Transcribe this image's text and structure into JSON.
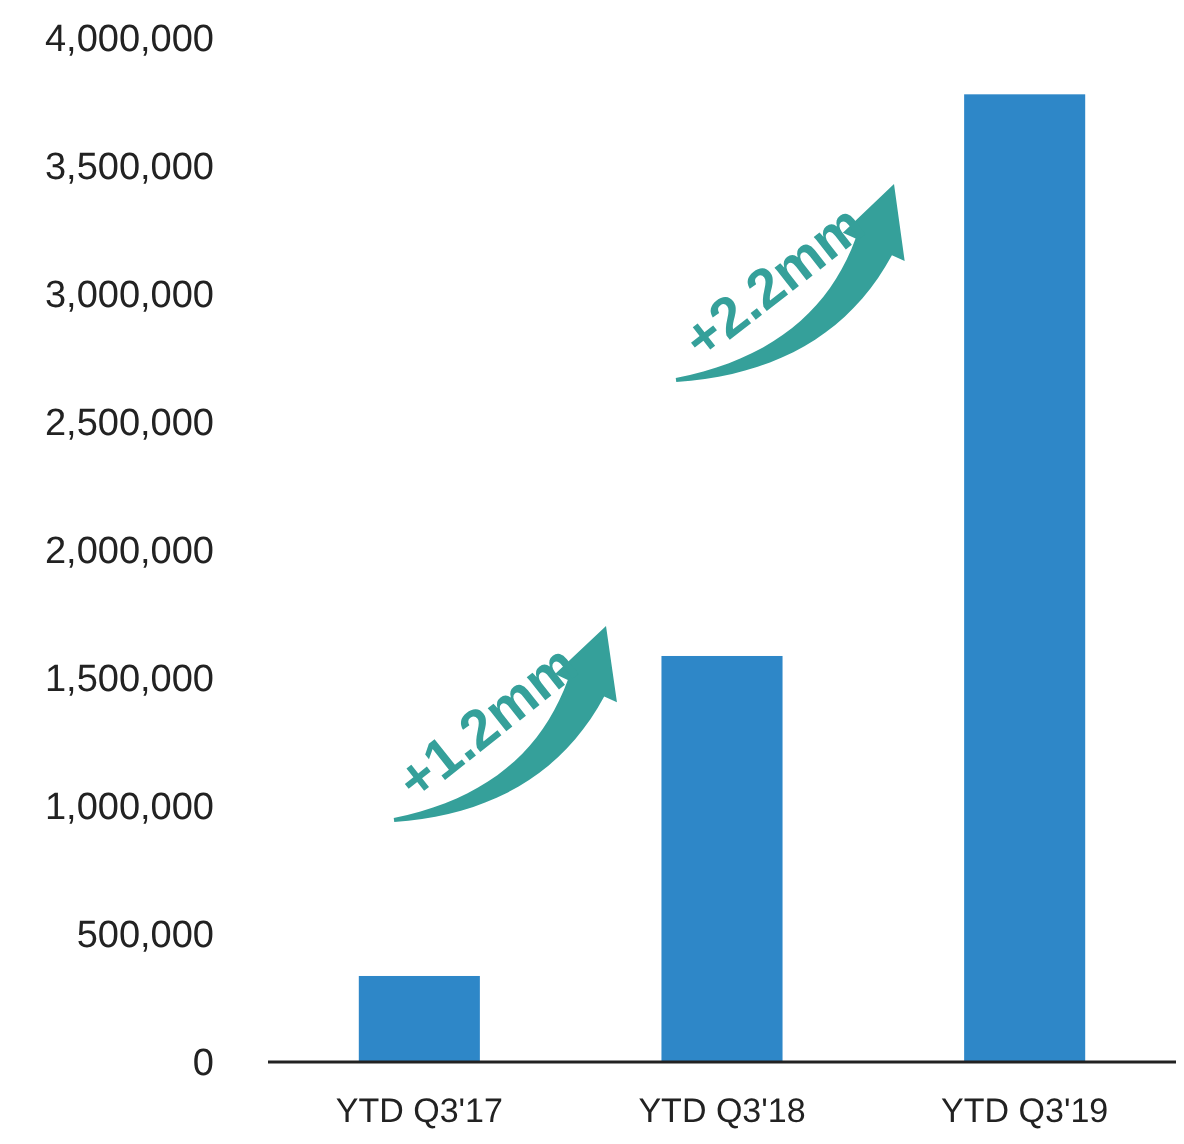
{
  "chart_data": {
    "type": "bar",
    "categories": [
      "YTD Q3'17",
      "YTD Q3'18",
      "YTD Q3'19"
    ],
    "values": [
      336000,
      1586000,
      3780000
    ],
    "color": "#2e87c8",
    "ylim": [
      0,
      4000000
    ],
    "yticks": [
      {
        "value": 0,
        "label": "0"
      },
      {
        "value": 500000,
        "label": "500,000"
      },
      {
        "value": 1000000,
        "label": "1,000,000"
      },
      {
        "value": 1500000,
        "label": "1,500,000"
      },
      {
        "value": 2000000,
        "label": "2,000,000"
      },
      {
        "value": 2500000,
        "label": "2,500,000"
      },
      {
        "value": 3000000,
        "label": "3,000,000"
      },
      {
        "value": 3500000,
        "label": "3,500,000"
      },
      {
        "value": 4000000,
        "label": "4,000,000"
      }
    ],
    "grid": false,
    "annotations": [
      "+1.2mm",
      "+2.2mm"
    ]
  }
}
